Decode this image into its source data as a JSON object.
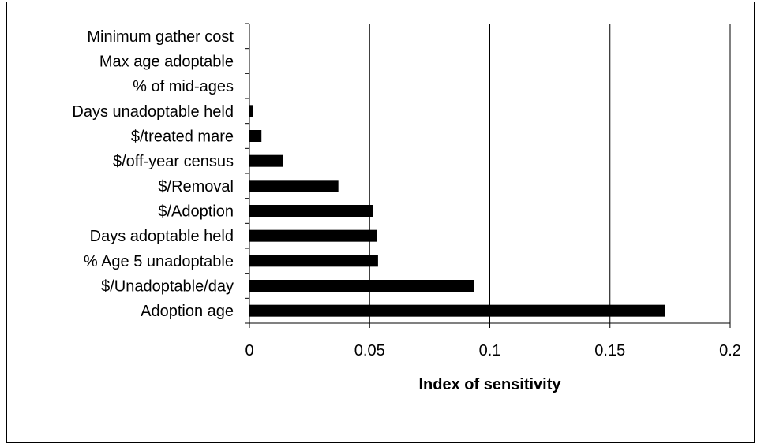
{
  "chart_data": {
    "type": "bar",
    "orientation": "horizontal",
    "categories": [
      "Minimum gather cost",
      "Max age adoptable",
      "% of mid-ages",
      "Days unadoptable held",
      "$/treated mare",
      "$/off-year census",
      "$/Removal",
      "$/Adoption",
      "Days adoptable held",
      "% Age 5 unadoptable",
      "$/Unadoptable/day",
      "Adoption age"
    ],
    "values": [
      0,
      0,
      0,
      0.0015,
      0.005,
      0.014,
      0.037,
      0.0515,
      0.053,
      0.0535,
      0.0935,
      0.173
    ],
    "title": "",
    "xlabel": "Index of sensitivity",
    "ylabel": "",
    "xlim": [
      0,
      0.2
    ],
    "xticks": [
      0,
      0.05,
      0.1,
      0.15,
      0.2
    ],
    "xtick_labels": [
      "0",
      "0.05",
      "0.1",
      "0.15",
      "0.2"
    ],
    "grid": "vertical major gridlines",
    "legend": "none",
    "bar_color": "#000000"
  }
}
